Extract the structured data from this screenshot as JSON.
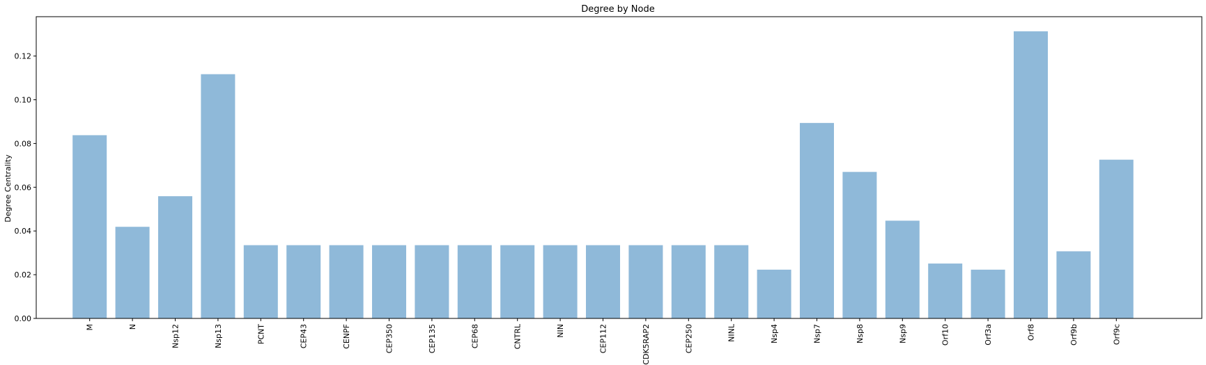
{
  "chart_data": {
    "type": "bar",
    "title": "Degree by Node",
    "xlabel": "",
    "ylabel": "Degree Centrality",
    "categories": [
      "M",
      "N",
      "Nsp12",
      "Nsp13",
      "PCNT",
      "CEP43",
      "CENPF",
      "CEP350",
      "CEP135",
      "CEP68",
      "CNTRL",
      "NIN",
      "CEP112",
      "CDK5RAP2",
      "CEP250",
      "NINL",
      "Nsp4",
      "Nsp7",
      "Nsp8",
      "Nsp9",
      "Orf10",
      "Orf3a",
      "Orf8",
      "Orf9b",
      "Orf9c"
    ],
    "values": [
      0.0838,
      0.0419,
      0.0559,
      0.1117,
      0.0335,
      0.0335,
      0.0335,
      0.0335,
      0.0335,
      0.0335,
      0.0335,
      0.0335,
      0.0335,
      0.0335,
      0.0335,
      0.0335,
      0.0223,
      0.0894,
      0.067,
      0.0447,
      0.0251,
      0.0223,
      0.1313,
      0.0307,
      0.0726
    ],
    "ylim": [
      0,
      0.138
    ],
    "yticks": [
      "0.00",
      "0.02",
      "0.04",
      "0.06",
      "0.08",
      "0.10",
      "0.12"
    ],
    "bar_color": "#8fb9d9",
    "grid": false,
    "legend": "none"
  }
}
